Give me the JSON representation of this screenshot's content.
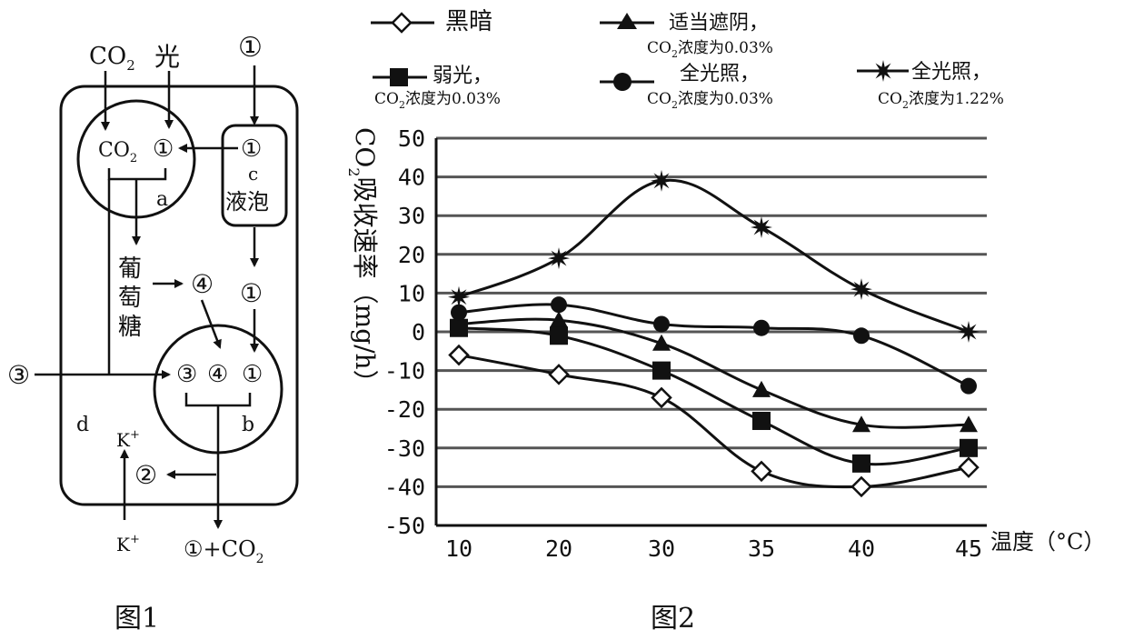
{
  "figure1": {
    "caption": "图1",
    "top_labels": {
      "co2": "CO",
      "co2_sub": "2",
      "light": "光",
      "w1": "①"
    },
    "chloroplast": {
      "co2": "CO",
      "co2_sub": "2",
      "w1": "①",
      "letter": "a"
    },
    "vacuole": {
      "w1": "①",
      "letter": "c",
      "name": "液泡"
    },
    "glucose": {
      "chars": [
        "葡",
        "萄",
        "糖"
      ]
    },
    "mid_labels": {
      "n4": "④",
      "w1": "①"
    },
    "mitochondrion": {
      "n3": "③",
      "n4": "④",
      "w1": "①",
      "letter": "b"
    },
    "left_input": "③",
    "cell_letter": "d",
    "k_top": "K",
    "k_bottom": "K",
    "k_sup": "+",
    "n2": "②",
    "output": {
      "w1": "①",
      "plus": "+CO",
      "sub": "2"
    }
  },
  "figure2": {
    "caption": "图2",
    "legend": [
      {
        "key": "dark",
        "marker": "diamond",
        "line1": "黑暗",
        "line2": ""
      },
      {
        "key": "shade",
        "marker": "triangle",
        "line1": "适当遮阴，",
        "line2a": "CO",
        "line2sub": "2",
        "line2b": "浓度为0.03%"
      },
      {
        "key": "weak",
        "marker": "square",
        "line1": "弱光，",
        "line2a": "CO",
        "line2sub": "2",
        "line2b": "浓度为0.03%"
      },
      {
        "key": "full",
        "marker": "circle",
        "line1": "全光照，",
        "line2a": "CO",
        "line2sub": "2",
        "line2b": "浓度为0.03%"
      },
      {
        "key": "fullhigh",
        "marker": "star",
        "line1": "全光照，",
        "line2a": "CO",
        "line2sub": "2",
        "line2b": "浓度为1.22%"
      }
    ],
    "ylabel_chars": [
      "CO",
      "吸",
      "收",
      "速",
      "率",
      "（mg/h）"
    ],
    "ylabel_sub": "2",
    "xlabel": "温度（°C）"
  },
  "chart_data": {
    "type": "line",
    "categories": [
      "10",
      "20",
      "30",
      "35",
      "40",
      "45"
    ],
    "ylim": [
      -50,
      50
    ],
    "yticks": [
      "50",
      "40",
      "30",
      "20",
      "10",
      "0",
      "-10",
      "-20",
      "-30",
      "-40",
      "-50"
    ],
    "grid": true,
    "series": [
      {
        "name": "黑暗",
        "marker": "diamond",
        "values": [
          -6,
          -11,
          -17,
          -36,
          -40,
          -35
        ]
      },
      {
        "name": "适当遮阴，CO2浓度为0.03%",
        "marker": "triangle",
        "values": [
          2,
          3,
          -3,
          -15,
          -24,
          -24
        ]
      },
      {
        "name": "弱光，CO2浓度为0.03%",
        "marker": "square",
        "values": [
          1,
          -1,
          -10,
          -23,
          -34,
          -30
        ]
      },
      {
        "name": "全光照，CO2浓度为0.03%",
        "marker": "circle",
        "values": [
          5,
          7,
          2,
          1,
          -1,
          -14
        ]
      },
      {
        "name": "全光照，CO2浓度为1.22%",
        "marker": "star",
        "values": [
          9,
          19,
          39,
          27,
          11,
          0
        ]
      }
    ]
  }
}
